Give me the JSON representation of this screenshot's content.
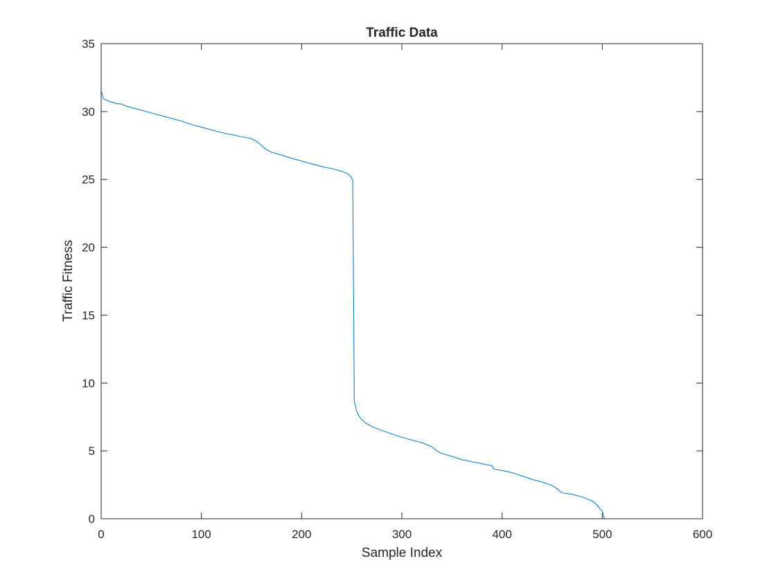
{
  "chart_data": {
    "type": "line",
    "title": "Traffic Data",
    "xlabel": "Sample Index",
    "ylabel": "Traffic Fitness",
    "xlim": [
      0,
      600
    ],
    "ylim": [
      0,
      35
    ],
    "xticks": [
      0,
      100,
      200,
      300,
      400,
      500,
      600
    ],
    "yticks": [
      0,
      5,
      10,
      15,
      20,
      25,
      30,
      35
    ],
    "grid": false,
    "line_color": "#0072BD",
    "series": [
      {
        "x": [
          0,
          1,
          2,
          3,
          5,
          8,
          10,
          15,
          20,
          25,
          30,
          40,
          50,
          60,
          70,
          80,
          90,
          100,
          110,
          120,
          130,
          140,
          150,
          155,
          160,
          163,
          165,
          170,
          180,
          190,
          200,
          210,
          220,
          230,
          240,
          245,
          248,
          250,
          251,
          252,
          252.5,
          253,
          254,
          255,
          257,
          260,
          263,
          270,
          280,
          290,
          300,
          310,
          320,
          330,
          335,
          340,
          350,
          360,
          370,
          380,
          390,
          392,
          400,
          410,
          420,
          430,
          440,
          450,
          455,
          458,
          460,
          465,
          470,
          480,
          490,
          495,
          498,
          500,
          501,
          502
        ],
        "y": [
          31.5,
          31.3,
          31.0,
          30.9,
          30.85,
          30.75,
          30.7,
          30.6,
          30.55,
          30.4,
          30.3,
          30.1,
          29.9,
          29.7,
          29.5,
          29.3,
          29.05,
          28.85,
          28.65,
          28.45,
          28.3,
          28.15,
          28.0,
          27.8,
          27.5,
          27.3,
          27.2,
          27.0,
          26.8,
          26.55,
          26.35,
          26.15,
          25.95,
          25.8,
          25.6,
          25.45,
          25.3,
          25.1,
          24.9,
          15.0,
          8.8,
          8.5,
          8.2,
          7.9,
          7.6,
          7.3,
          7.1,
          6.8,
          6.5,
          6.25,
          6.0,
          5.8,
          5.6,
          5.3,
          5.0,
          4.8,
          4.6,
          4.35,
          4.2,
          4.05,
          3.9,
          3.65,
          3.55,
          3.4,
          3.15,
          2.9,
          2.7,
          2.45,
          2.2,
          2.0,
          1.9,
          1.85,
          1.8,
          1.6,
          1.3,
          1.0,
          0.7,
          0.55,
          0.3,
          0.0
        ]
      }
    ]
  }
}
